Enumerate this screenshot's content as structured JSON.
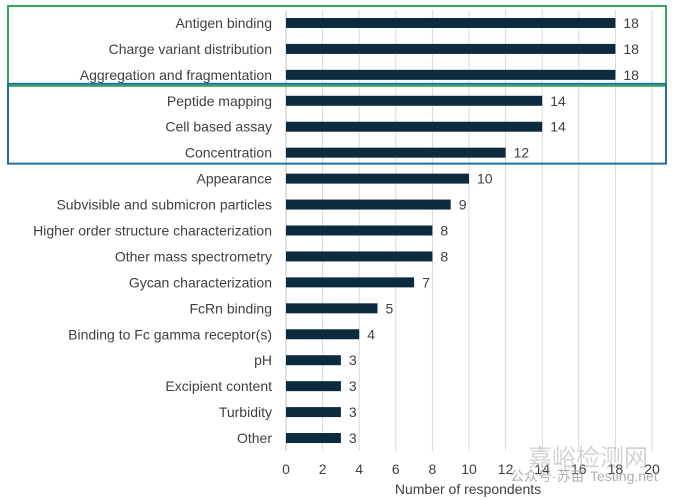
{
  "chart_data": {
    "type": "bar",
    "orientation": "horizontal",
    "title": "",
    "xlabel": "Number of respondents",
    "ylabel": "",
    "xlim": [
      0,
      20
    ],
    "xticks": [
      0,
      2,
      4,
      6,
      8,
      10,
      12,
      14,
      16,
      18,
      20
    ],
    "grid": true,
    "bar_color": "#0d2b3e",
    "categories": [
      "Antigen binding",
      "Charge variant distribution",
      "Aggregation and fragmentation",
      "Peptide mapping",
      "Cell based assay",
      "Concentration",
      "Appearance",
      "Subvisible and submicron particles",
      "Higher order structure characterization",
      "Other mass spectrometry",
      "Gycan characterization",
      "FcRn binding",
      "Binding to Fc gamma receptor(s)",
      "pH",
      "Excipient content",
      "Turbidity",
      "Other"
    ],
    "values": [
      18,
      18,
      18,
      14,
      14,
      12,
      10,
      9,
      8,
      8,
      7,
      5,
      4,
      3,
      3,
      3,
      3
    ],
    "highlight_groups": [
      {
        "color": "#2eaa5a",
        "first": 0,
        "last": 2
      },
      {
        "color": "#1f6fa6",
        "first": 3,
        "last": 5
      }
    ]
  },
  "watermark": {
    "main": "嘉峪检测网",
    "sub": "公众号·苏苗",
    "url": "Testing.net"
  }
}
